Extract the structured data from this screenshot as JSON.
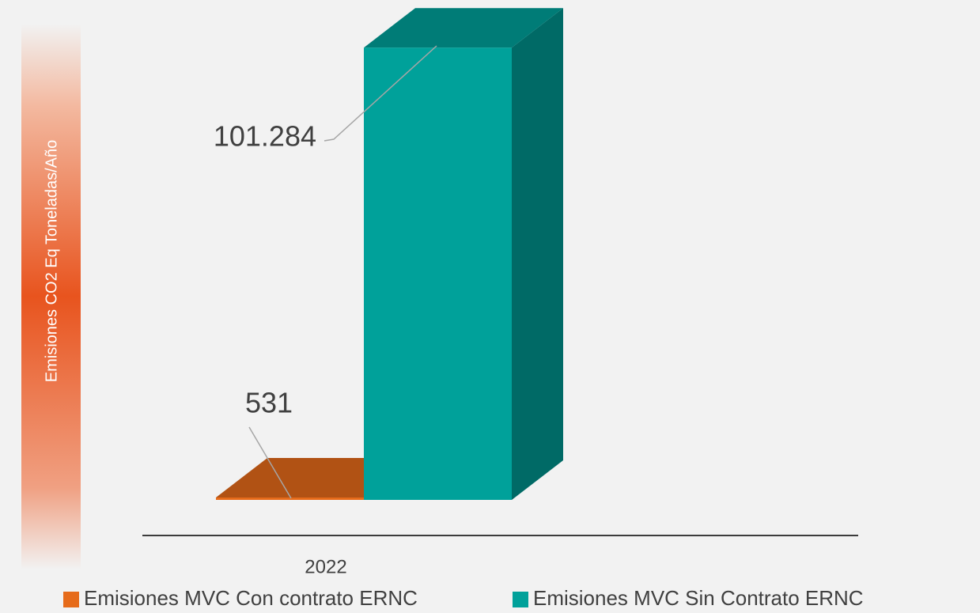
{
  "chart_data": {
    "type": "bar",
    "y_label": "Emisiones CO2 Eq Toneladas/Año",
    "categories": [
      "2022"
    ],
    "series": [
      {
        "name": "Emisiones MVC Con contrato ERNC",
        "color": "#e66b1a",
        "values": [
          531
        ],
        "value_labels": [
          "531"
        ]
      },
      {
        "name": "Emisiones MVC Sin Contrato ERNC",
        "color": "#00a19a",
        "values": [
          101284
        ],
        "value_labels": [
          "101.284"
        ]
      }
    ],
    "ylim": [
      0,
      110000
    ]
  }
}
